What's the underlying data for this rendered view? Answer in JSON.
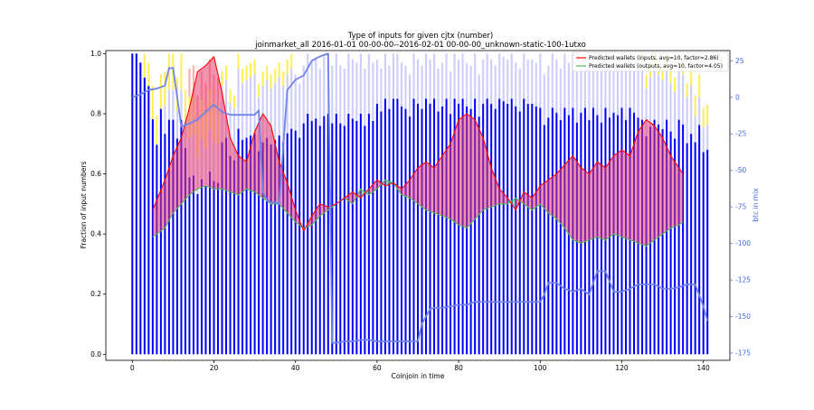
{
  "chart_data": {
    "type": "bar",
    "title": "Type of inputs for given cjtx (number)",
    "subtitle": "joinmarket_all 2016-01-01 00-00-00--2016-02-01 00-00-00_unknown-static-100-1utxo",
    "xlabel": "Coinjoin in time",
    "ylabel": "Fraction of input numbers",
    "y2label": "btc in mix",
    "xlim": [
      -6.5,
      146.5
    ],
    "ylim": [
      -0.02,
      1.01
    ],
    "y2lim": [
      -180,
      32
    ],
    "xticks": [
      0,
      20,
      40,
      60,
      80,
      100,
      120,
      140
    ],
    "yticks": [
      0.0,
      0.2,
      0.4,
      0.6,
      0.8,
      1.0
    ],
    "ytick_labels": [
      "0.0",
      "0.2",
      "0.4",
      "0.6",
      "0.8",
      "1.0"
    ],
    "y2ticks": [
      -175,
      -150,
      -125,
      -100,
      -75,
      -50,
      -25,
      0,
      25
    ],
    "legend_position": "top-right",
    "bar_count": 142,
    "bar_series": [
      {
        "role": "fresh",
        "color": "#0000ff"
      },
      {
        "role": "remixed",
        "color": "#ccccff"
      },
      {
        "role": "other",
        "color": "#ffee55"
      },
      {
        "role": "rare",
        "color": "#ffaaaa"
      }
    ],
    "bar_tops": [
      1.0,
      1.0,
      0.97,
      1.0,
      0.97,
      0.92,
      0.82,
      0.96,
      0.94,
      1.0,
      1.0,
      0.92,
      1.0,
      0.88,
      0.95,
      0.96,
      0.86,
      0.94,
      0.9,
      0.98,
      0.93,
      0.92,
      0.94,
      0.96,
      0.88,
      0.86,
      1.0,
      0.95,
      0.96,
      0.97,
      0.98,
      0.9,
      0.94,
      0.96,
      0.93,
      0.95,
      0.97,
      0.94,
      0.98,
      1.0,
      0.93,
      0.9,
      0.96,
      1.0,
      0.97,
      0.98,
      0.95,
      0.99,
      1.0,
      0.96,
      1.0,
      0.96,
      0.95,
      1.0,
      0.98,
      0.97,
      1.0,
      0.95,
      1.0,
      0.97,
      0.98,
      0.95,
      1.0,
      0.96,
      1.0,
      1.0,
      0.97,
      0.96,
      0.93,
      1.0,
      0.98,
      0.96,
      1.0,
      0.98,
      1.0,
      0.95,
      0.97,
      1.0,
      0.94,
      1.0,
      0.98,
      1.0,
      0.97,
      0.96,
      1.0,
      0.93,
      0.98,
      1.0,
      0.98,
      0.96,
      1.0,
      0.99,
      0.98,
      1.0,
      0.97,
      0.95,
      1.0,
      0.98,
      0.98,
      0.97,
      1.0,
      0.93,
      0.96,
      1.0,
      0.98,
      0.95,
      1.0,
      0.97,
      1.0,
      0.94,
      0.98,
      1.0,
      0.95,
      1.0,
      0.97,
      0.94,
      1.0,
      0.96,
      0.98,
      0.97,
      1.0,
      0.95,
      1.0,
      0.98,
      0.96,
      1.0,
      0.93,
      0.97,
      1.0,
      0.98,
      0.96,
      1.0,
      0.95,
      0.92,
      1.0,
      0.98,
      0.9,
      0.94,
      0.86,
      0.93,
      0.82,
      0.83
    ],
    "bar_segments": [
      {
        "at": 0,
        "fresh": 1.0
      },
      {
        "at": 3,
        "fresh": 0.92,
        "other": 0.08
      },
      {
        "at": 5,
        "fresh": 0.85,
        "other": 0.12
      },
      {
        "at": 8,
        "fresh": 0.78,
        "remixed": 0.1,
        "other": 0.12
      },
      {
        "at": 14,
        "fresh": 0.62,
        "remixed": 0.14,
        "other": 0.14,
        "rare": 0.1
      },
      {
        "at": 22,
        "fresh": 0.75,
        "remixed": 0.2,
        "other": 0.05
      },
      {
        "at": 40,
        "fresh": 0.8,
        "remixed": 0.2
      },
      {
        "at": 60,
        "fresh": 0.85,
        "remixed": 0.15
      },
      {
        "at": 100,
        "fresh": 0.82,
        "remixed": 0.18
      },
      {
        "at": 125,
        "fresh": 0.78,
        "remixed": 0.17,
        "other": 0.05
      },
      {
        "at": 138,
        "fresh": 0.82,
        "remixed": 0.1,
        "other": 0.08
      }
    ],
    "series": [
      {
        "name": "Predicted wallets (inputs, avg=10, factor=2.86)",
        "color": "#ff0000",
        "x": [
          5,
          8,
          10,
          12,
          14,
          16,
          18,
          20,
          22,
          24,
          26,
          28,
          30,
          32,
          34,
          36,
          38,
          40,
          42,
          44,
          46,
          48,
          50,
          52,
          54,
          56,
          58,
          60,
          62,
          64,
          66,
          68,
          70,
          72,
          74,
          76,
          78,
          80,
          82,
          84,
          86,
          88,
          90,
          92,
          94,
          96,
          98,
          100,
          102,
          104,
          106,
          108,
          110,
          112,
          114,
          116,
          118,
          120,
          122,
          124,
          126,
          128,
          130,
          132,
          134,
          135
        ],
        "values": [
          0.48,
          0.58,
          0.66,
          0.72,
          0.82,
          0.94,
          0.96,
          0.99,
          0.87,
          0.72,
          0.66,
          0.64,
          0.74,
          0.8,
          0.76,
          0.64,
          0.57,
          0.48,
          0.41,
          0.46,
          0.5,
          0.49,
          0.5,
          0.52,
          0.54,
          0.52,
          0.55,
          0.58,
          0.56,
          0.57,
          0.55,
          0.58,
          0.62,
          0.64,
          0.62,
          0.66,
          0.7,
          0.78,
          0.8,
          0.78,
          0.72,
          0.62,
          0.55,
          0.52,
          0.48,
          0.54,
          0.52,
          0.56,
          0.58,
          0.6,
          0.63,
          0.66,
          0.62,
          0.6,
          0.64,
          0.62,
          0.66,
          0.68,
          0.66,
          0.74,
          0.78,
          0.76,
          0.72,
          0.66,
          0.62,
          0.6
        ]
      },
      {
        "name": "Predicted wallets (outputs, avg=10, factor=4.05)",
        "color": "#55bb55",
        "x": [
          5,
          8,
          10,
          12,
          14,
          16,
          18,
          20,
          22,
          24,
          26,
          28,
          30,
          32,
          34,
          36,
          38,
          40,
          42,
          44,
          46,
          48,
          50,
          52,
          54,
          56,
          58,
          60,
          62,
          64,
          66,
          68,
          70,
          72,
          74,
          76,
          78,
          80,
          82,
          84,
          86,
          88,
          90,
          92,
          94,
          96,
          98,
          100,
          102,
          104,
          106,
          108,
          110,
          112,
          114,
          116,
          118,
          120,
          122,
          124,
          126,
          128,
          130,
          132,
          134,
          135
        ],
        "values": [
          0.39,
          0.42,
          0.47,
          0.5,
          0.53,
          0.55,
          0.56,
          0.55,
          0.55,
          0.54,
          0.53,
          0.55,
          0.54,
          0.52,
          0.5,
          0.5,
          0.47,
          0.44,
          0.42,
          0.43,
          0.46,
          0.48,
          0.5,
          0.52,
          0.5,
          0.55,
          0.53,
          0.55,
          0.58,
          0.57,
          0.53,
          0.52,
          0.5,
          0.48,
          0.47,
          0.46,
          0.45,
          0.43,
          0.42,
          0.45,
          0.48,
          0.49,
          0.5,
          0.5,
          0.52,
          0.5,
          0.48,
          0.5,
          0.47,
          0.45,
          0.42,
          0.38,
          0.37,
          0.38,
          0.39,
          0.38,
          0.4,
          0.39,
          0.38,
          0.37,
          0.36,
          0.38,
          0.4,
          0.42,
          0.43,
          0.44
        ]
      },
      {
        "name": "btc in mix",
        "axis": "right",
        "color": "#6f83e8",
        "x": [
          0,
          2,
          4,
          6,
          8,
          9,
          10,
          11,
          12,
          14,
          16,
          18,
          20,
          22,
          24,
          26,
          28,
          30,
          31,
          32,
          33,
          34,
          35,
          36,
          38,
          40,
          42,
          44,
          46,
          48,
          49,
          50,
          52,
          54,
          56,
          58,
          60,
          62,
          64,
          66,
          68,
          70,
          71,
          72,
          73,
          74,
          76,
          78,
          80,
          82,
          84,
          86,
          88,
          90,
          92,
          94,
          96,
          98,
          100,
          101,
          102,
          104,
          106,
          108,
          110,
          112,
          114,
          116,
          118,
          120,
          122,
          124,
          126,
          128,
          130,
          132,
          134,
          136,
          138,
          140,
          141
        ],
        "values": [
          0,
          2,
          5,
          6,
          8,
          20,
          20,
          0,
          -20,
          -18,
          -15,
          -10,
          -5,
          -10,
          -12,
          -12,
          -12,
          -12,
          -9,
          -65,
          -70,
          -72,
          -72,
          -73,
          5,
          12,
          15,
          25,
          28,
          30,
          -168,
          -168,
          -167,
          -167,
          -166,
          -166,
          -167,
          -167,
          -167,
          -167,
          -167,
          -167,
          -155,
          -150,
          -145,
          -144,
          -144,
          -143,
          -142,
          -142,
          -140,
          -140,
          -140,
          -140,
          -140,
          -140,
          -140,
          -140,
          -140,
          -135,
          -127,
          -127,
          -131,
          -133,
          -131,
          -135,
          -119,
          -119,
          -133,
          -133,
          -131,
          -128,
          -128,
          -128,
          -131,
          -131,
          -130,
          -128,
          -128,
          -143,
          -153
        ]
      }
    ]
  }
}
